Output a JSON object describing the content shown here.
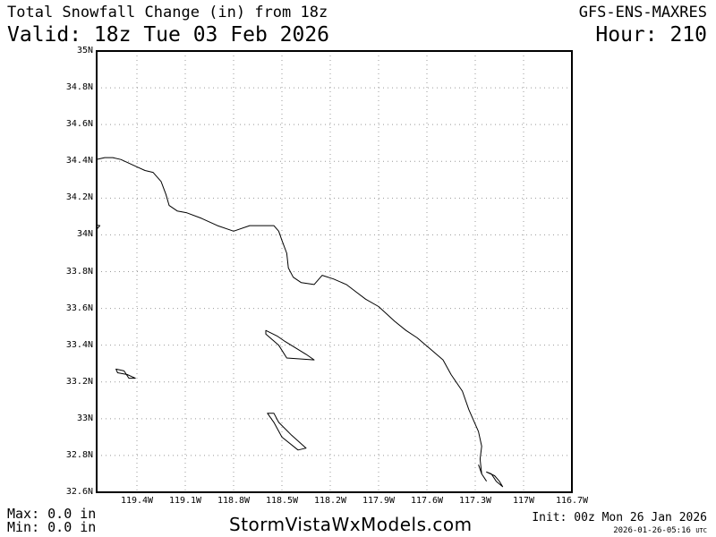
{
  "header": {
    "title": "Total Snowfall Change (in) from 18z",
    "valid": "Valid: 18z Tue 03 Feb 2026",
    "model": "GFS-ENS-MAXRES",
    "hour": "Hour: 210"
  },
  "footer": {
    "max": "Max: 0.0 in",
    "min": "Min: 0.0 in",
    "site": "StormVistaWxModels.com",
    "init": "Init: 00z Mon 26 Jan 2026",
    "timestamp": "2026-01-26-05:16",
    "timestamp_unit": "UTC"
  },
  "map": {
    "lat_range": [
      32.6,
      35.0
    ],
    "lon_range": [
      -119.65,
      -116.7
    ],
    "grid": true,
    "lat_labels": [
      "35N",
      "34.8N",
      "34.6N",
      "34.4N",
      "34.2N",
      "34N",
      "33.8N",
      "33.6N",
      "33.4N",
      "33.2N",
      "33N",
      "32.8N",
      "32.6N"
    ],
    "lon_labels": [
      "119.4W",
      "119.1W",
      "118.8W",
      "118.5W",
      "118.2W",
      "117.9W",
      "117.6W",
      "117.3W",
      "117W",
      "116.7W"
    ],
    "coastline": [
      [
        -119.65,
        34.41
      ],
      [
        -119.6,
        34.42
      ],
      [
        -119.55,
        34.42
      ],
      [
        -119.5,
        34.41
      ],
      [
        -119.45,
        34.39
      ],
      [
        -119.4,
        34.37
      ],
      [
        -119.35,
        34.35
      ],
      [
        -119.3,
        34.34
      ],
      [
        -119.25,
        34.29
      ],
      [
        -119.22,
        34.22
      ],
      [
        -119.2,
        34.16
      ],
      [
        -119.15,
        34.13
      ],
      [
        -119.09,
        34.12
      ],
      [
        -119.0,
        34.09
      ],
      [
        -118.9,
        34.05
      ],
      [
        -118.8,
        34.02
      ],
      [
        -118.7,
        34.05
      ],
      [
        -118.6,
        34.05
      ],
      [
        -118.55,
        34.05
      ],
      [
        -118.52,
        34.02
      ],
      [
        -118.5,
        33.97
      ],
      [
        -118.47,
        33.9
      ],
      [
        -118.46,
        33.82
      ],
      [
        -118.43,
        33.77
      ],
      [
        -118.38,
        33.74
      ],
      [
        -118.3,
        33.73
      ],
      [
        -118.27,
        33.76
      ],
      [
        -118.25,
        33.78
      ],
      [
        -118.18,
        33.76
      ],
      [
        -118.1,
        33.73
      ],
      [
        -118.04,
        33.69
      ],
      [
        -117.98,
        33.65
      ],
      [
        -117.9,
        33.61
      ],
      [
        -117.85,
        33.57
      ],
      [
        -117.8,
        33.53
      ],
      [
        -117.73,
        33.48
      ],
      [
        -117.66,
        33.44
      ],
      [
        -117.58,
        33.38
      ],
      [
        -117.5,
        33.32
      ],
      [
        -117.45,
        33.24
      ],
      [
        -117.38,
        33.15
      ],
      [
        -117.34,
        33.05
      ],
      [
        -117.28,
        32.93
      ],
      [
        -117.26,
        32.85
      ],
      [
        -117.27,
        32.78
      ],
      [
        -117.26,
        32.7
      ]
    ],
    "point_loma": [
      [
        -117.28,
        32.75
      ],
      [
        -117.26,
        32.7
      ],
      [
        -117.23,
        32.66
      ]
    ],
    "san_diego_bay": [
      [
        -117.23,
        32.71
      ],
      [
        -117.18,
        32.69
      ],
      [
        -117.15,
        32.66
      ],
      [
        -117.13,
        32.63
      ],
      [
        -117.17,
        32.66
      ],
      [
        -117.2,
        32.7
      ]
    ],
    "islands": [
      [
        [
          -119.94,
          34.07
        ],
        [
          -119.87,
          34.04
        ],
        [
          -119.77,
          34.04
        ],
        [
          -119.7,
          34.06
        ],
        [
          -119.63,
          34.05
        ],
        [
          -119.65,
          34.03
        ],
        [
          -119.72,
          34.02
        ],
        [
          -119.8,
          34.01
        ],
        [
          -119.92,
          34.02
        ]
      ],
      [
        [
          -119.53,
          33.27
        ],
        [
          -119.48,
          33.26
        ],
        [
          -119.45,
          33.22
        ],
        [
          -119.41,
          33.22
        ],
        [
          -119.46,
          33.24
        ],
        [
          -119.52,
          33.25
        ]
      ],
      [
        [
          -118.6,
          33.48
        ],
        [
          -118.53,
          33.45
        ],
        [
          -118.48,
          33.42
        ],
        [
          -118.35,
          33.35
        ],
        [
          -118.3,
          33.32
        ],
        [
          -118.47,
          33.33
        ],
        [
          -118.52,
          33.4
        ],
        [
          -118.6,
          33.46
        ]
      ],
      [
        [
          -118.59,
          33.03
        ],
        [
          -118.55,
          32.98
        ],
        [
          -118.5,
          32.9
        ],
        [
          -118.4,
          32.83
        ],
        [
          -118.35,
          32.84
        ],
        [
          -118.44,
          32.91
        ],
        [
          -118.52,
          32.98
        ],
        [
          -118.55,
          33.03
        ]
      ]
    ]
  }
}
